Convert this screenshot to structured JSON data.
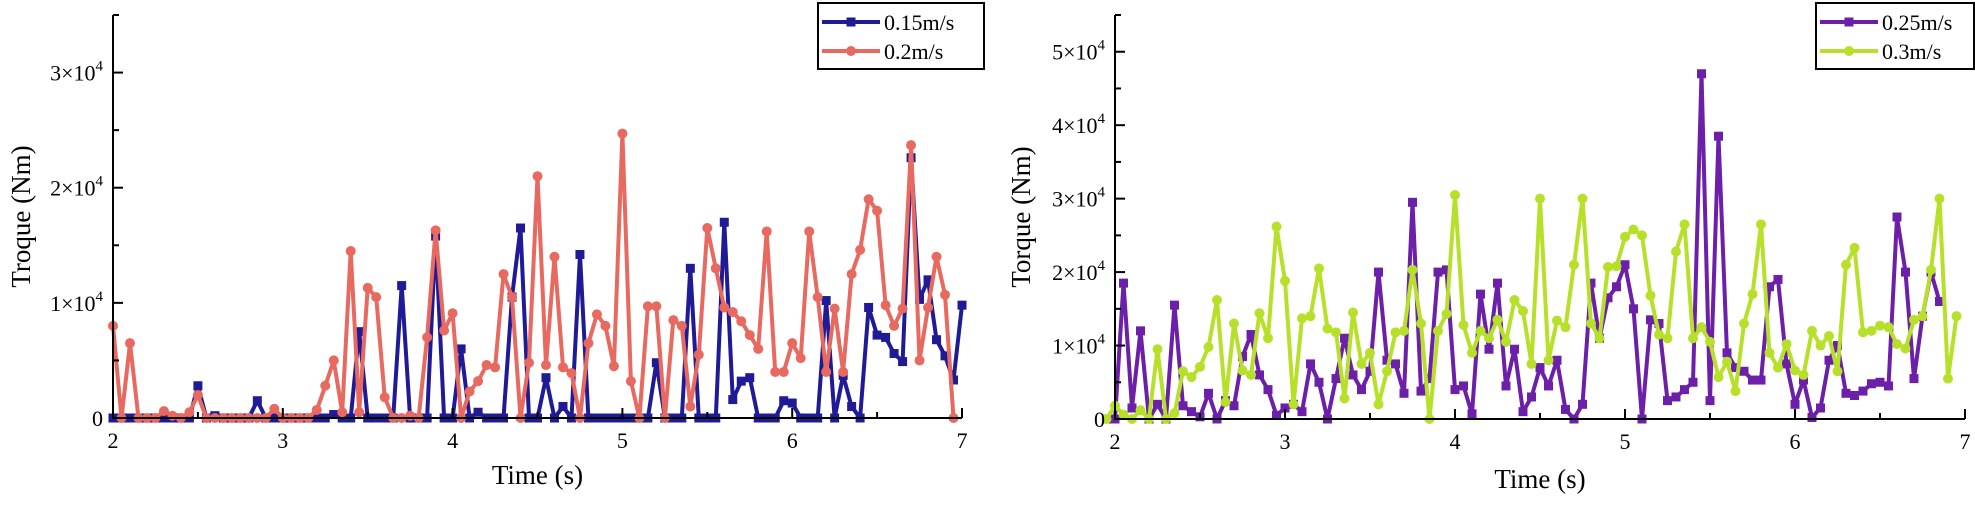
{
  "chart_data": [
    {
      "type": "line",
      "title": "",
      "xlabel": "Time (s)",
      "ylabel": "Troque (Nm)",
      "xlim": [
        2,
        7
      ],
      "ylim": [
        0,
        35000
      ],
      "xticks": [
        2,
        3,
        4,
        5,
        6,
        7
      ],
      "xtick_labels": [
        "2",
        "3",
        "4",
        "5",
        "6",
        "7"
      ],
      "yticks": [
        0,
        10000,
        20000,
        30000
      ],
      "ytick_labels": [
        {
          "base": "0",
          "exp": ""
        },
        {
          "base": "1×10",
          "exp": "4"
        },
        {
          "base": "2×10",
          "exp": "4"
        },
        {
          "base": "3×10",
          "exp": "4"
        }
      ],
      "legend_position": "top-right",
      "grid": false,
      "x_start": 2.0,
      "x_step": 0.05,
      "series": [
        {
          "name": "0.15m/s",
          "color": "#1f1a96",
          "marker": "square",
          "values": [
            0,
            0,
            0,
            0,
            0,
            0,
            0,
            0,
            0,
            0,
            2800,
            0,
            200,
            0,
            0,
            0,
            0,
            1500,
            0,
            0,
            0,
            0,
            0,
            0,
            0,
            0,
            300,
            0,
            0,
            7500,
            0,
            0,
            0,
            0,
            11500,
            0,
            0,
            0,
            15800,
            0,
            0,
            6000,
            0,
            500,
            0,
            0,
            0,
            10500,
            16500,
            0,
            0,
            3500,
            0,
            1000,
            0,
            14200,
            0,
            0,
            0,
            0,
            0,
            0,
            0,
            0,
            4800,
            0,
            0,
            0,
            13000,
            0,
            0,
            0,
            17000,
            1600,
            3200,
            3500,
            0,
            0,
            0,
            1500,
            1300,
            0,
            0,
            0,
            10200,
            0,
            3700,
            1000,
            0,
            9600,
            7200,
            7000,
            5600,
            4900,
            22600,
            10300,
            12000,
            6800,
            5400,
            3300,
            9800
          ]
        },
        {
          "name": "0.2m/s",
          "color": "#e8695f",
          "marker": "circle",
          "values": [
            8000,
            0,
            6500,
            0,
            0,
            0,
            600,
            200,
            0,
            500,
            2000,
            0,
            0,
            0,
            0,
            0,
            0,
            0,
            0,
            800,
            0,
            0,
            0,
            0,
            700,
            2800,
            5000,
            500,
            14500,
            500,
            11300,
            10500,
            1800,
            0,
            0,
            200,
            0,
            7000,
            16300,
            7600,
            9100,
            0,
            2300,
            3200,
            4600,
            4400,
            12500,
            10500,
            0,
            4800,
            21000,
            4600,
            14000,
            4400,
            3900,
            0,
            6500,
            9000,
            8000,
            4500,
            24700,
            3200,
            0,
            9700,
            9700,
            0,
            8500,
            8000,
            1000,
            5500,
            16500,
            13000,
            9600,
            9200,
            8400,
            7200,
            6000,
            16200,
            4000,
            4000,
            6500,
            5200,
            16200,
            10500,
            4000,
            9500,
            4000,
            12500,
            14600,
            19000,
            18000,
            9800,
            8000,
            9500,
            23700,
            5000,
            9600,
            14000,
            10700,
            0
          ],
          "values_note": ""
        }
      ]
    },
    {
      "type": "line",
      "title": "",
      "xlabel": "Time (s)",
      "ylabel": "Torque (Nm)",
      "xlim": [
        2,
        7
      ],
      "ylim": [
        0,
        55000
      ],
      "xticks": [
        2,
        3,
        4,
        5,
        6,
        7
      ],
      "xtick_labels": [
        "2",
        "3",
        "4",
        "5",
        "6",
        "7"
      ],
      "yticks": [
        0,
        10000,
        20000,
        30000,
        40000,
        50000
      ],
      "ytick_labels": [
        {
          "base": "0",
          "exp": ""
        },
        {
          "base": "1×10",
          "exp": "4"
        },
        {
          "base": "2×10",
          "exp": "4"
        },
        {
          "base": "3×10",
          "exp": "4"
        },
        {
          "base": "4×10",
          "exp": "4"
        },
        {
          "base": "5×10",
          "exp": "4"
        }
      ],
      "legend_position": "top-right",
      "grid": false,
      "x_start": 1.95,
      "x_step": 0.05,
      "series": [
        {
          "name": "0.25m/s",
          "color": "#6c1fa8",
          "marker": "square",
          "values": [
            0,
            0,
            18500,
            1500,
            12000,
            0,
            2000,
            0,
            15500,
            1800,
            1000,
            300,
            3500,
            0,
            2500,
            1800,
            8500,
            11500,
            6000,
            4000,
            500,
            1500,
            2000,
            1000,
            7500,
            5000,
            0,
            5500,
            11000,
            6000,
            4000,
            6500,
            20000,
            8000,
            7500,
            3500,
            29500,
            3800,
            5500,
            20000,
            20300,
            4000,
            4500,
            700,
            17000,
            9500,
            18500,
            4500,
            9500,
            1000,
            3000,
            7000,
            4500,
            8000,
            1300,
            0,
            2000,
            18500,
            11000,
            16500,
            18000,
            21000,
            15000,
            0,
            13500,
            13000,
            2500,
            3000,
            4000,
            5000,
            47000,
            2500,
            38500,
            9000,
            7000,
            6500,
            5300,
            5300,
            18000,
            19000,
            7500,
            2000,
            5300,
            200,
            1500,
            8000,
            10000,
            3500,
            3200,
            3800,
            4800,
            5000,
            4500,
            27500,
            20000,
            5500,
            14000,
            20000,
            16000
          ]
        },
        {
          "name": "0.3m/s",
          "color": "#b7e02a",
          "marker": "circle",
          "values": [
            0,
            1800,
            600,
            0,
            1200,
            0,
            9500,
            0,
            800,
            6500,
            5700,
            7100,
            9800,
            16200,
            2300,
            13000,
            6600,
            6000,
            14400,
            11000,
            26200,
            18800,
            2000,
            13700,
            14000,
            20500,
            12300,
            11800,
            2800,
            14500,
            7500,
            9000,
            2000,
            6500,
            11800,
            12000,
            20300,
            13000,
            0,
            12000,
            14300,
            30500,
            12800,
            9000,
            12000,
            11000,
            13500,
            10500,
            16200,
            14700,
            7500,
            30000,
            8000,
            13400,
            12500,
            21000,
            30000,
            13000,
            11000,
            20700,
            20800,
            24800,
            25800,
            25000,
            16800,
            11500,
            11000,
            22800,
            26500,
            11000,
            12500,
            10500,
            5700,
            7800,
            3800,
            13000,
            17000,
            26500,
            9000,
            7000,
            10200,
            6600,
            6000,
            12000,
            10000,
            11300,
            6500,
            21000,
            23300,
            11800,
            12000,
            12700,
            12500,
            10200,
            9600,
            13500,
            14000,
            20300,
            30000,
            5500,
            14000
          ]
        }
      ]
    }
  ]
}
